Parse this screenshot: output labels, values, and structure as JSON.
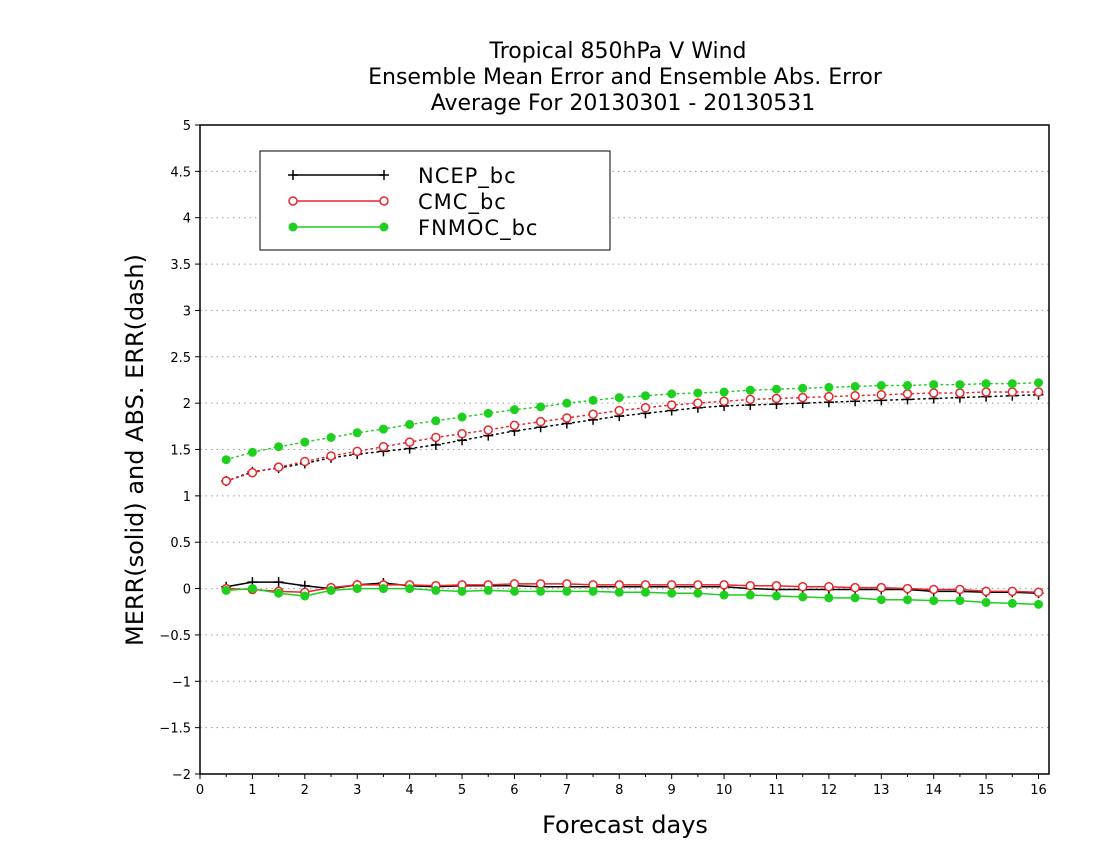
{
  "chart_data": {
    "type": "line",
    "title": [
      "Tropical 850hPa V Wind",
      "Ensemble Mean Error and Ensemble Abs. Error",
      "Average For 20130301 - 20130531"
    ],
    "xlabel": "Forecast days",
    "ylabel": "MERR(solid) and ABS. ERR(dash)",
    "xlim": [
      0,
      16.2
    ],
    "ylim": [
      -2,
      5
    ],
    "xticks": [
      0,
      1,
      2,
      3,
      4,
      5,
      6,
      7,
      8,
      9,
      10,
      11,
      12,
      13,
      14,
      15,
      16
    ],
    "yticks": [
      -2,
      -1.5,
      -1,
      -0.5,
      0,
      0.5,
      1,
      1.5,
      2,
      2.5,
      3,
      3.5,
      4,
      4.5,
      5
    ],
    "xtick_labels": [
      "0",
      "1",
      "2",
      "3",
      "4",
      "5",
      "6",
      "7",
      "8",
      "9",
      "10",
      "11",
      "12",
      "13",
      "14",
      "15",
      "16"
    ],
    "ytick_labels": [
      "−2",
      "−1.5",
      "−1",
      "−0.5",
      "0",
      "0.5",
      "1",
      "1.5",
      "2",
      "2.5",
      "3",
      "3.5",
      "4",
      "4.5",
      "5"
    ],
    "grid": "horizontal-dotted",
    "legend": "top-left",
    "x": [
      0.5,
      1,
      1.5,
      2,
      2.5,
      3,
      3.5,
      4,
      4.5,
      5,
      5.5,
      6,
      6.5,
      7,
      7.5,
      8,
      8.5,
      9,
      9.5,
      10,
      10.5,
      11,
      11.5,
      12,
      12.5,
      13,
      13.5,
      14,
      14.5,
      15,
      15.5,
      16
    ],
    "series": [
      {
        "name": "NCEP_bc",
        "color": "#000000",
        "marker": "plus",
        "merr": [
          0.02,
          0.07,
          0.07,
          0.03,
          0.0,
          0.04,
          0.06,
          0.03,
          0.02,
          0.03,
          0.03,
          0.03,
          0.02,
          0.02,
          0.02,
          0.02,
          0.02,
          0.02,
          0.02,
          0.02,
          0.0,
          -0.01,
          -0.01,
          -0.01,
          -0.01,
          -0.01,
          -0.01,
          -0.03,
          -0.03,
          -0.04,
          -0.04,
          -0.05
        ],
        "abs_err": [
          1.16,
          1.26,
          1.3,
          1.35,
          1.41,
          1.45,
          1.48,
          1.51,
          1.55,
          1.6,
          1.65,
          1.7,
          1.74,
          1.78,
          1.82,
          1.86,
          1.89,
          1.92,
          1.95,
          1.97,
          1.98,
          1.99,
          2.0,
          2.01,
          2.02,
          2.03,
          2.04,
          2.05,
          2.06,
          2.07,
          2.08,
          2.09
        ]
      },
      {
        "name": "CMC_bc",
        "color": "#e8262b",
        "marker": "open-circle",
        "merr": [
          0.0,
          -0.01,
          -0.03,
          -0.04,
          0.01,
          0.04,
          0.04,
          0.04,
          0.03,
          0.04,
          0.04,
          0.05,
          0.05,
          0.05,
          0.04,
          0.04,
          0.04,
          0.04,
          0.04,
          0.04,
          0.03,
          0.03,
          0.02,
          0.02,
          0.01,
          0.01,
          0.0,
          -0.01,
          -0.01,
          -0.03,
          -0.03,
          -0.04
        ],
        "abs_err": [
          1.16,
          1.25,
          1.31,
          1.37,
          1.43,
          1.48,
          1.53,
          1.58,
          1.63,
          1.67,
          1.71,
          1.76,
          1.8,
          1.84,
          1.88,
          1.92,
          1.95,
          1.98,
          2.0,
          2.02,
          2.04,
          2.05,
          2.06,
          2.07,
          2.08,
          2.09,
          2.1,
          2.11,
          2.11,
          2.12,
          2.12,
          2.12
        ]
      },
      {
        "name": "FNMOC_bc",
        "color": "#1fcf1f",
        "marker": "filled-circle",
        "merr": [
          -0.02,
          0.0,
          -0.05,
          -0.08,
          -0.02,
          0.0,
          0.0,
          0.0,
          -0.02,
          -0.03,
          -0.02,
          -0.03,
          -0.03,
          -0.03,
          -0.03,
          -0.04,
          -0.04,
          -0.05,
          -0.05,
          -0.07,
          -0.07,
          -0.08,
          -0.09,
          -0.1,
          -0.1,
          -0.12,
          -0.12,
          -0.13,
          -0.13,
          -0.15,
          -0.16,
          -0.17
        ],
        "abs_err": [
          1.39,
          1.47,
          1.53,
          1.58,
          1.63,
          1.68,
          1.72,
          1.77,
          1.81,
          1.85,
          1.89,
          1.93,
          1.96,
          2.0,
          2.03,
          2.06,
          2.08,
          2.1,
          2.11,
          2.12,
          2.14,
          2.15,
          2.16,
          2.17,
          2.18,
          2.19,
          2.19,
          2.2,
          2.2,
          2.21,
          2.21,
          2.22
        ]
      }
    ]
  }
}
